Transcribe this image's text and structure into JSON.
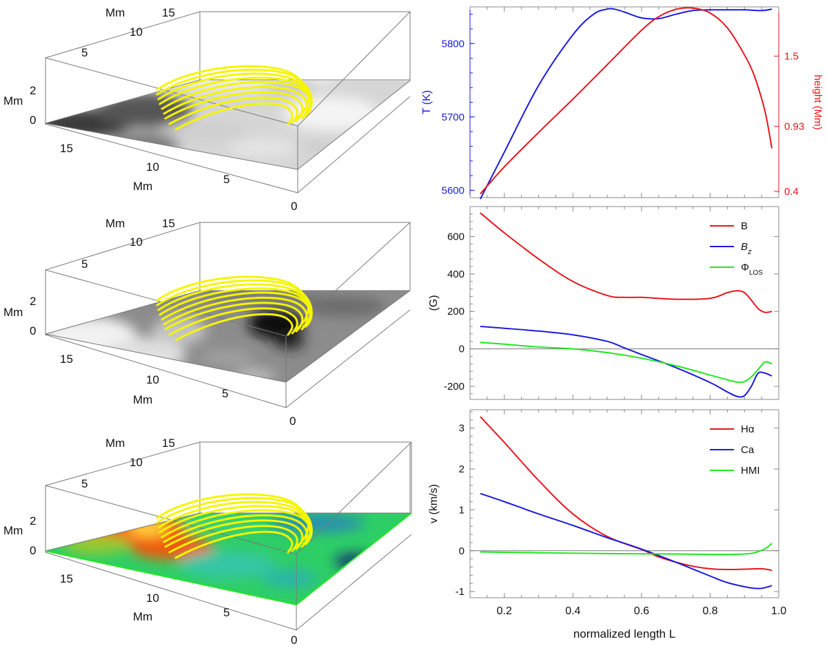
{
  "colors": {
    "red": "#e8141c",
    "blue": "#1a1adf",
    "green": "#1ee81e",
    "fieldline": "#f5f500",
    "zero_line": "#777777",
    "frame": "#777777"
  },
  "boxes": [
    {
      "surface": "grayscale-intensity",
      "labels": {
        "mm_back": "Mm",
        "mm_left": "Mm",
        "mm_front": "Mm"
      },
      "back_ticks": [
        "5",
        "10",
        "15"
      ],
      "left_ticks": [
        "0",
        "2"
      ],
      "front_ticks": [
        "15",
        "10",
        "5",
        "0"
      ]
    },
    {
      "surface": "grayscale-magnetogram",
      "labels": {
        "mm_back": "Mm",
        "mm_left": "Mm",
        "mm_front": "Mm"
      },
      "back_ticks": [
        "5",
        "10",
        "15"
      ],
      "left_ticks": [
        "0",
        "2"
      ],
      "front_ticks": [
        "15",
        "10",
        "5",
        "0"
      ]
    },
    {
      "surface": "color-velocity",
      "labels": {
        "mm_back": "Mm",
        "mm_left": "Mm",
        "mm_front": "Mm"
      },
      "back_ticks": [
        "5",
        "10",
        "15"
      ],
      "left_ticks": [
        "0",
        "2"
      ],
      "front_ticks": [
        "15",
        "10",
        "5",
        "0"
      ]
    }
  ],
  "chart_data": [
    {
      "type": "line",
      "xlabel": "",
      "ylabel": "T (K)",
      "ylabel_right": "height (Mm)",
      "xlim": [
        0.1,
        1.0
      ],
      "ylim": [
        5590,
        5850
      ],
      "yticks": [
        5600,
        5700,
        5800
      ],
      "ylim_right": [
        0.35,
        1.9
      ],
      "yticks_right": [
        0.4,
        0.93,
        1.5
      ],
      "yticks_right_labels": [
        "0.4",
        "0.93",
        "1.5"
      ],
      "xticks": [
        0.2,
        0.4,
        0.6,
        0.8,
        1.0
      ],
      "xtick_labels_visible": false,
      "series": [
        {
          "color": "blue",
          "axis": "left",
          "x": [
            0.13,
            0.2,
            0.3,
            0.4,
            0.46,
            0.5,
            0.52,
            0.55,
            0.6,
            0.65,
            0.7,
            0.75,
            0.8,
            0.85,
            0.9,
            0.95,
            0.98
          ],
          "y": [
            5588,
            5652,
            5743,
            5812,
            5840,
            5847,
            5847,
            5843,
            5835,
            5834,
            5840,
            5845,
            5846,
            5846,
            5846,
            5845,
            5847
          ]
        },
        {
          "color": "red",
          "axis": "right",
          "x": [
            0.13,
            0.2,
            0.3,
            0.4,
            0.5,
            0.6,
            0.65,
            0.7,
            0.75,
            0.8,
            0.85,
            0.9,
            0.93,
            0.96,
            0.98
          ],
          "y": [
            0.38,
            0.6,
            0.88,
            1.15,
            1.43,
            1.71,
            1.82,
            1.88,
            1.89,
            1.85,
            1.73,
            1.51,
            1.33,
            1.05,
            0.75
          ]
        }
      ]
    },
    {
      "type": "line",
      "xlabel": "",
      "ylabel": "(G)",
      "xlim": [
        0.1,
        1.0
      ],
      "ylim": [
        -270,
        760
      ],
      "yticks": [
        -200,
        0,
        200,
        400,
        600
      ],
      "xticks": [
        0.2,
        0.4,
        0.6,
        0.8,
        1.0
      ],
      "xtick_labels_visible": false,
      "zero_line": true,
      "legend": {
        "position": "top-right"
      },
      "series": [
        {
          "name": "B",
          "color": "red",
          "x": [
            0.13,
            0.2,
            0.3,
            0.4,
            0.5,
            0.55,
            0.6,
            0.7,
            0.8,
            0.85,
            0.88,
            0.9,
            0.92,
            0.94,
            0.96,
            0.98
          ],
          "y": [
            726,
            620,
            480,
            360,
            285,
            275,
            275,
            265,
            270,
            300,
            310,
            300,
            260,
            215,
            195,
            200
          ]
        },
        {
          "name": "Bz",
          "name_sub": "z",
          "color": "blue",
          "x": [
            0.13,
            0.2,
            0.3,
            0.4,
            0.5,
            0.55,
            0.6,
            0.7,
            0.8,
            0.85,
            0.88,
            0.9,
            0.92,
            0.94,
            0.96,
            0.98
          ],
          "y": [
            120,
            110,
            95,
            75,
            40,
            5,
            -30,
            -100,
            -180,
            -230,
            -255,
            -250,
            -200,
            -130,
            -130,
            -145
          ]
        },
        {
          "name": "ΦLOS",
          "name_sub": "LOS",
          "color": "green",
          "x": [
            0.13,
            0.2,
            0.3,
            0.4,
            0.5,
            0.6,
            0.7,
            0.8,
            0.85,
            0.88,
            0.9,
            0.92,
            0.94,
            0.96,
            0.98
          ],
          "y": [
            35,
            25,
            10,
            0,
            -20,
            -50,
            -90,
            -140,
            -165,
            -178,
            -175,
            -150,
            -110,
            -70,
            -80
          ]
        }
      ]
    },
    {
      "type": "line",
      "xlabel": "normalized length L",
      "ylabel": "v (km/s)",
      "xlim": [
        0.1,
        1.0
      ],
      "ylim": [
        -1.15,
        3.45
      ],
      "yticks": [
        -1,
        0,
        1,
        2,
        3
      ],
      "xticks": [
        0.2,
        0.4,
        0.6,
        0.8,
        1.0
      ],
      "xtick_labels": [
        "0.2",
        "0.4",
        "0.6",
        "0.8",
        "1.0"
      ],
      "zero_line": true,
      "legend": {
        "position": "top-right"
      },
      "series": [
        {
          "name": "Hα",
          "color": "red",
          "x": [
            0.13,
            0.2,
            0.3,
            0.4,
            0.5,
            0.6,
            0.65,
            0.7,
            0.75,
            0.8,
            0.85,
            0.9,
            0.95,
            0.98
          ],
          "y": [
            3.28,
            2.65,
            1.72,
            0.9,
            0.35,
            0.03,
            -0.15,
            -0.28,
            -0.38,
            -0.44,
            -0.46,
            -0.45,
            -0.44,
            -0.48
          ]
        },
        {
          "name": "Ca",
          "color": "blue",
          "x": [
            0.13,
            0.2,
            0.3,
            0.4,
            0.5,
            0.6,
            0.7,
            0.8,
            0.85,
            0.9,
            0.93,
            0.95,
            0.97,
            0.98
          ],
          "y": [
            1.4,
            1.2,
            0.9,
            0.62,
            0.32,
            0.04,
            -0.28,
            -0.62,
            -0.78,
            -0.88,
            -0.92,
            -0.92,
            -0.88,
            -0.85
          ]
        },
        {
          "name": "HMI",
          "color": "green",
          "x": [
            0.13,
            0.3,
            0.5,
            0.7,
            0.8,
            0.85,
            0.9,
            0.93,
            0.96,
            0.98
          ],
          "y": [
            -0.03,
            -0.05,
            -0.07,
            -0.08,
            -0.09,
            -0.09,
            -0.08,
            -0.05,
            0.05,
            0.18
          ]
        }
      ]
    }
  ]
}
